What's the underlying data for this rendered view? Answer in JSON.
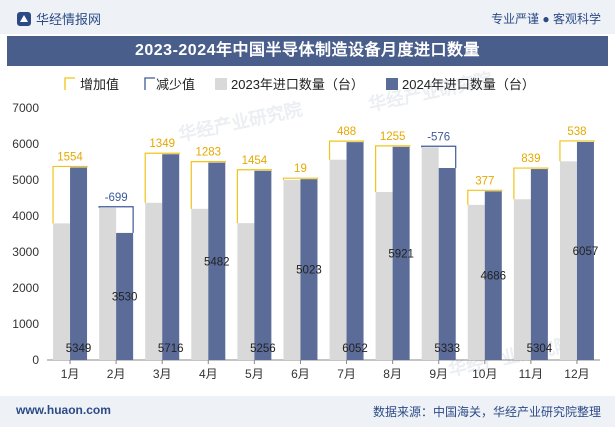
{
  "header": {
    "brand": "华经情报网",
    "slogan": "专业严谨 ● 客观科学"
  },
  "footer": {
    "site": "www.huaon.com",
    "source": "数据来源：中国海关，华经产业研究院整理"
  },
  "watermark": "华经产业研究院",
  "chart_data": {
    "type": "bar",
    "title": "2023-2024年中国半导体制造设备月度进口数量",
    "categories": [
      "1月",
      "2月",
      "3月",
      "4月",
      "5月",
      "6月",
      "7月",
      "8月",
      "9月",
      "10月",
      "11月",
      "12月"
    ],
    "series": [
      {
        "name": "2023年进口数量（台）",
        "values": [
          3795,
          4229,
          4367,
          4199,
          3802,
          5004,
          5564,
          4666,
          5909,
          4309,
          4465,
          5519
        ]
      },
      {
        "name": "2024年进口数量（台）",
        "values": [
          5349,
          3530,
          5716,
          5482,
          5256,
          5023,
          6052,
          5921,
          5333,
          4686,
          5304,
          6057
        ]
      }
    ],
    "change": [
      {
        "label": "1554",
        "kind": "increase"
      },
      {
        "label": "-699",
        "kind": "decrease"
      },
      {
        "label": "1349",
        "kind": "increase"
      },
      {
        "label": "1283",
        "kind": "increase"
      },
      {
        "label": "1454",
        "kind": "increase"
      },
      {
        "label": "19",
        "kind": "increase"
      },
      {
        "label": "488",
        "kind": "increase"
      },
      {
        "label": "1255",
        "kind": "increase"
      },
      {
        "label": "-576",
        "kind": "decrease"
      },
      {
        "label": "377",
        "kind": "increase"
      },
      {
        "label": "839",
        "kind": "increase"
      },
      {
        "label": "538",
        "kind": "increase"
      }
    ],
    "legend": {
      "increase": "增加值",
      "decrease": "减少值",
      "s2023": "2023年进口数量（台）",
      "s2024": "2024年进口数量（台）"
    },
    "ylim": [
      0,
      7000
    ],
    "yticks": [
      "0",
      "1000",
      "2000",
      "3000",
      "4000",
      "5000",
      "6000",
      "7000"
    ],
    "colors": {
      "s2023": "#d9d9d9",
      "s2024": "#5b6c99",
      "increase": "#f0c419",
      "decrease": "#3d5a99",
      "axis": "#888888"
    }
  }
}
